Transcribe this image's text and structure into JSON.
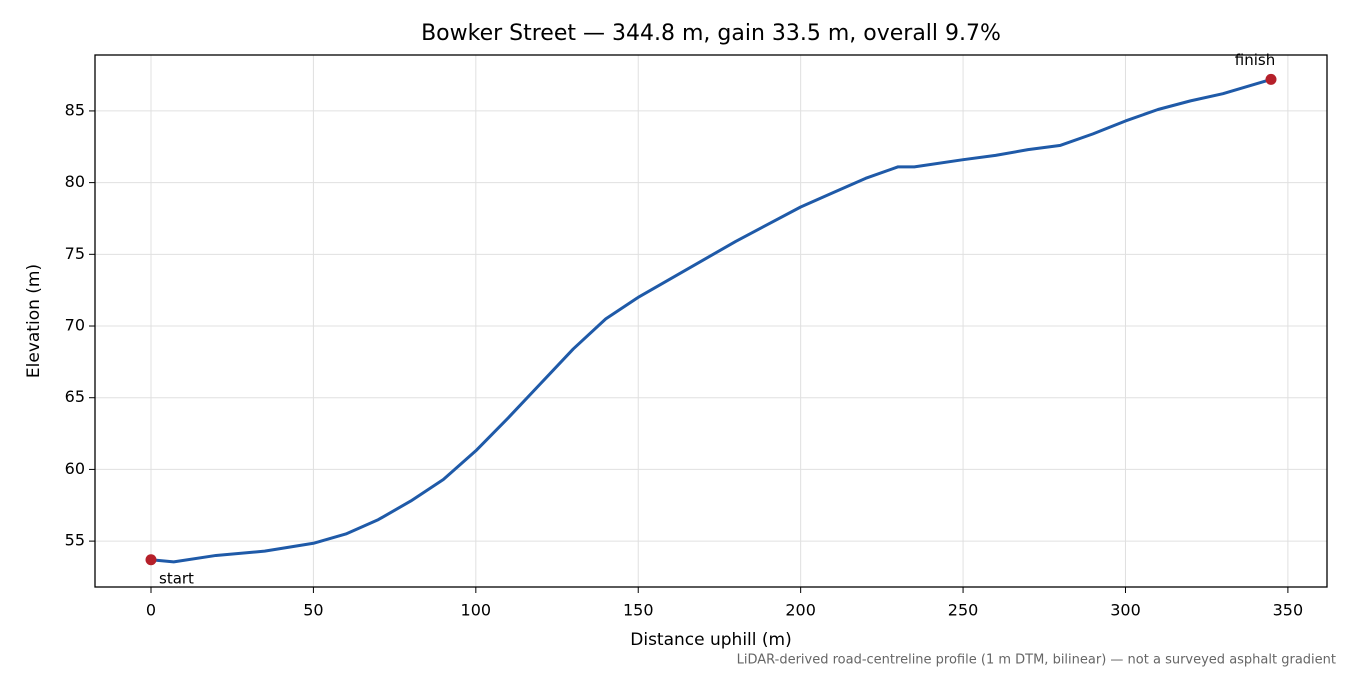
{
  "chart_data": {
    "type": "line",
    "title": "Bowker Street — 344.8 m, gain 33.5 m, overall 9.7%",
    "x_label": "Distance uphill (m)",
    "y_label": "Elevation (m)",
    "note": "LiDAR-derived road-centreline profile (1 m DTM, bilinear) — not a surveyed asphalt gradient",
    "x": [
      0,
      7,
      20,
      35,
      50,
      60,
      70,
      80,
      90,
      100,
      110,
      120,
      130,
      140,
      150,
      160,
      170,
      180,
      190,
      200,
      210,
      220,
      230,
      235,
      250,
      260,
      270,
      280,
      290,
      300,
      310,
      320,
      330,
      344.8
    ],
    "series": [
      {
        "color": "#1f5aa8",
        "values": [
          53.7,
          53.55,
          54.0,
          54.3,
          54.85,
          55.5,
          56.5,
          57.8,
          59.3,
          61.3,
          63.6,
          66.0,
          68.4,
          70.5,
          72.0,
          73.3,
          74.6,
          75.9,
          77.1,
          78.3,
          79.3,
          80.3,
          81.1,
          81.1,
          81.6,
          81.9,
          82.3,
          82.6,
          83.4,
          84.3,
          85.1,
          85.7,
          86.2,
          87.2
        ]
      }
    ],
    "endpoint_color": "#b5202a",
    "annotations": [
      "start",
      "finish"
    ],
    "xlim": [
      -17.24,
      362.04
    ],
    "ylim": [
      51.8,
      88.9
    ],
    "xticks": [
      0,
      50,
      100,
      150,
      200,
      250,
      300,
      350
    ],
    "yticks": [
      55,
      60,
      65,
      70,
      75,
      80,
      85
    ],
    "grid": true
  }
}
